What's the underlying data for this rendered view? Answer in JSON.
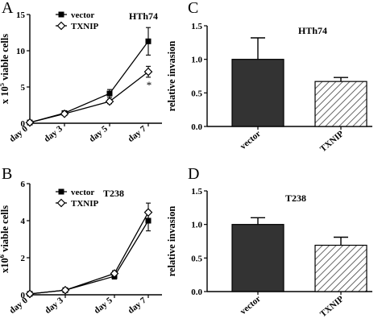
{
  "chart_data": [
    {
      "panel": "A",
      "type": "line",
      "cell_label": "HTh74",
      "ylabel": "x 10^5 viable cells",
      "ylabel_base": "x 10",
      "ylabel_exp": "5",
      "ylabel_rest": " viable cells",
      "categories": [
        "day 0",
        "day 3",
        "day 5",
        "day 7"
      ],
      "ylim": [
        0,
        15
      ],
      "yticks": [
        0,
        5,
        10,
        15
      ],
      "legend_position": "top-left",
      "series": [
        {
          "name": "vector",
          "marker": "square",
          "values": [
            0.1,
            1.4,
            4.1,
            11.3
          ],
          "errors": [
            0.1,
            0.15,
            0.55,
            1.9
          ]
        },
        {
          "name": "TXNIP",
          "marker": "diamond",
          "values": [
            0.1,
            1.3,
            3.0,
            7.1
          ],
          "errors": [
            0.1,
            0.15,
            0.3,
            0.75
          ]
        }
      ],
      "annotation": "*"
    },
    {
      "panel": "C",
      "type": "bar",
      "cell_label": "HTh74",
      "ylabel": "relative invasion",
      "categories": [
        "vector",
        "TXNIP"
      ],
      "values": [
        1.0,
        0.67
      ],
      "errors": [
        0.32,
        0.06
      ],
      "ylim": [
        0,
        1.5
      ],
      "yticks": [
        "0.0",
        "0.5",
        "1.0",
        "1.5"
      ],
      "fills": [
        "solid-dark",
        "hatched"
      ]
    },
    {
      "panel": "B",
      "type": "line",
      "cell_label": "T238",
      "ylabel": "x10^6 viable cells",
      "ylabel_base": "x10",
      "ylabel_exp": "6",
      "ylabel_rest": " viable cells",
      "categories": [
        "day 0",
        "day 3",
        "day 5",
        "day 7"
      ],
      "ylim": [
        0,
        6
      ],
      "yticks": [
        0,
        2,
        4,
        6
      ],
      "legend_position": "top-left",
      "series": [
        {
          "name": "vector",
          "marker": "square",
          "values": [
            0.05,
            0.25,
            1.0,
            4.0
          ],
          "errors": [
            0.05,
            0.05,
            0.15,
            0.55
          ]
        },
        {
          "name": "TXNIP",
          "marker": "diamond",
          "values": [
            0.05,
            0.25,
            1.15,
            4.45
          ],
          "errors": [
            0.05,
            0.05,
            0.15,
            0.5
          ]
        }
      ]
    },
    {
      "panel": "D",
      "type": "bar",
      "cell_label": "T238",
      "ylabel": "relative invasion",
      "categories": [
        "vector",
        "TXNIP"
      ],
      "values": [
        1.0,
        0.69
      ],
      "errors": [
        0.1,
        0.12
      ],
      "ylim": [
        0,
        1.5
      ],
      "yticks": [
        "0.0",
        "0.5",
        "1.0",
        "1.5"
      ],
      "fills": [
        "solid-dark",
        "hatched"
      ]
    }
  ],
  "colors": {
    "axis": "#000000",
    "dark_bar": "#333333",
    "hatch": "#444444",
    "open_marker": "#ffffff"
  }
}
